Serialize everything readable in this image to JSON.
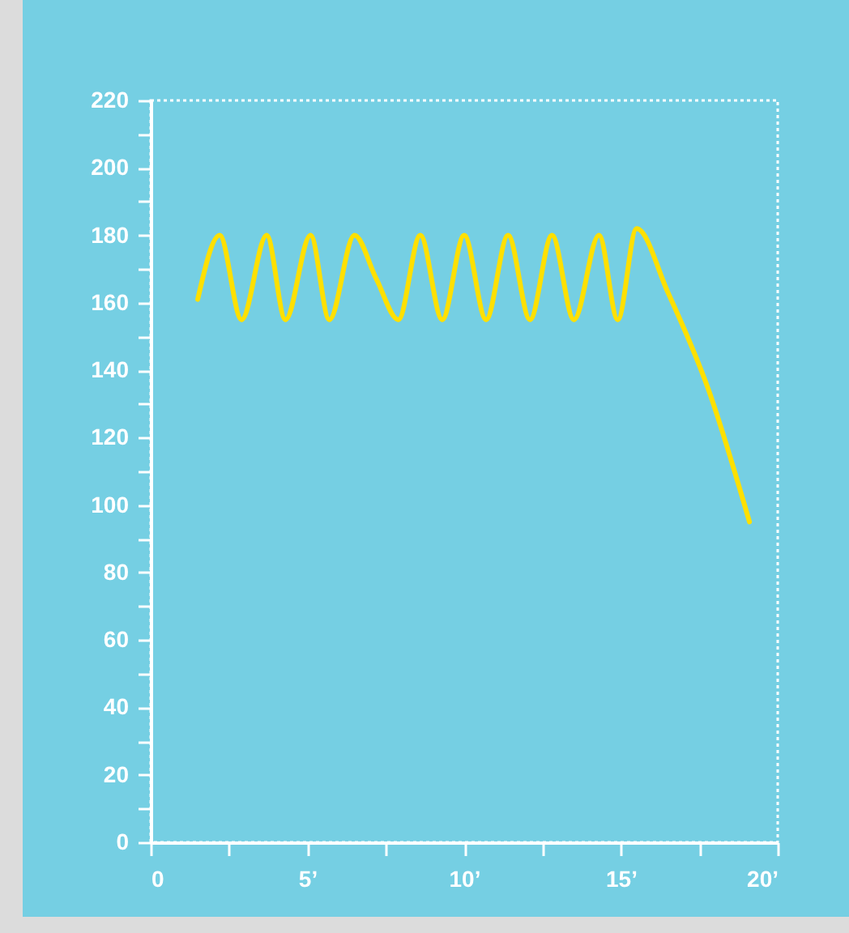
{
  "chart_data": {
    "type": "line",
    "x": [
      1.5,
      2.2,
      2.9,
      3.7,
      4.3,
      5.1,
      5.7,
      6.5,
      7.2,
      7.9,
      8.6,
      9.3,
      10.0,
      10.7,
      11.4,
      12.1,
      12.8,
      13.5,
      14.3,
      14.9,
      15.5,
      16.5,
      17.8,
      19.1
    ],
    "series": [
      {
        "color": "#ffe000",
        "values": [
          161,
          180,
          155,
          180,
          155,
          180,
          155,
          180,
          167,
          155,
          180,
          155,
          180,
          155,
          180,
          155,
          180,
          155,
          180,
          155,
          182,
          163,
          134,
          95
        ]
      }
    ],
    "xlim": [
      0,
      20
    ],
    "xticks": [
      0,
      {
        "value": 2.5,
        "label": null
      },
      {
        "value": 5,
        "label": "5’"
      },
      {
        "value": 7.5,
        "label": null
      },
      {
        "value": 10,
        "label": "10’"
      },
      {
        "value": 12.5,
        "label": null
      },
      {
        "value": 15,
        "label": "15’"
      },
      {
        "value": 17.5,
        "label": null
      },
      {
        "value": 20,
        "label": "20’"
      }
    ],
    "ylim": [
      0,
      220
    ],
    "yticks": [
      0,
      {
        "value": 10,
        "label": null
      },
      20,
      {
        "value": 30,
        "label": null
      },
      40,
      {
        "value": 50,
        "label": null
      },
      60,
      {
        "value": 70,
        "label": null
      },
      80,
      {
        "value": 90,
        "label": null
      },
      100,
      {
        "value": 110,
        "label": null
      },
      120,
      {
        "value": 130,
        "label": null
      },
      140,
      {
        "value": 150,
        "label": null
      },
      160,
      {
        "value": 170,
        "label": null
      },
      180,
      {
        "value": 190,
        "label": null
      },
      200,
      {
        "value": 210,
        "label": null
      },
      220
    ],
    "grid": false,
    "marker": "none",
    "line_style": "solid"
  }
}
